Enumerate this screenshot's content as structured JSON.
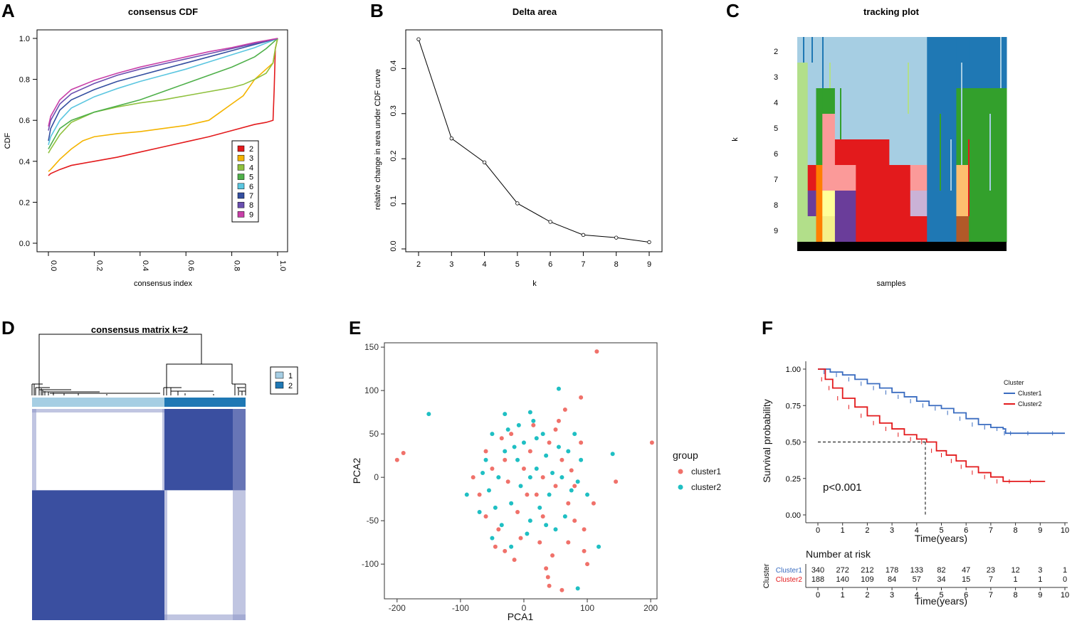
{
  "panel_letters": [
    "A",
    "B",
    "C",
    "D",
    "E",
    "F"
  ],
  "colors": {
    "k2": "#e31a1c",
    "k3": "#f4b400",
    "k4": "#8fc13e",
    "k5": "#4fb04a",
    "k6": "#5bc6e0",
    "k7": "#344fa0",
    "k8": "#6a4fb0",
    "k9": "#c83fa8",
    "cluster1_light": "#a6cee3",
    "cluster2_dark": "#1f78b4",
    "pca_cluster1": "#f0716a",
    "pca_cluster2": "#1fbfc3",
    "km_cluster1": "#3a6cc0",
    "km_cluster2": "#e31a1c",
    "heat_blue": "#3a4fa0"
  },
  "chart_data": [
    {
      "id": "A",
      "type": "line",
      "title": "consensus CDF",
      "xlabel": "consensus index",
      "ylabel": "CDF",
      "xlim": [
        0,
        1
      ],
      "ylim": [
        0,
        1
      ],
      "xticks": [
        "0.0",
        "0.2",
        "0.4",
        "0.6",
        "0.8",
        "1.0"
      ],
      "yticks": [
        "0.0",
        "0.2",
        "0.4",
        "0.6",
        "0.8",
        "1.0"
      ],
      "legend": [
        "2",
        "3",
        "4",
        "5",
        "6",
        "7",
        "8",
        "9"
      ],
      "series": [
        {
          "name": "2",
          "x": [
            0,
            0.01,
            0.05,
            0.1,
            0.2,
            0.3,
            0.4,
            0.5,
            0.6,
            0.7,
            0.8,
            0.9,
            0.95,
            0.98,
            0.985,
            0.99,
            1.0
          ],
          "y": [
            0.33,
            0.34,
            0.36,
            0.38,
            0.4,
            0.42,
            0.445,
            0.47,
            0.495,
            0.52,
            0.55,
            0.58,
            0.59,
            0.6,
            0.75,
            0.95,
            1.0
          ]
        },
        {
          "name": "3",
          "x": [
            0,
            0.01,
            0.05,
            0.1,
            0.15,
            0.2,
            0.3,
            0.4,
            0.5,
            0.6,
            0.7,
            0.75,
            0.8,
            0.85,
            0.9,
            0.95,
            0.98,
            0.99,
            1.0
          ],
          "y": [
            0.35,
            0.36,
            0.41,
            0.46,
            0.5,
            0.52,
            0.535,
            0.545,
            0.56,
            0.575,
            0.6,
            0.64,
            0.68,
            0.72,
            0.8,
            0.85,
            0.88,
            0.95,
            1.0
          ]
        },
        {
          "name": "4",
          "x": [
            0,
            0.01,
            0.05,
            0.1,
            0.2,
            0.3,
            0.4,
            0.5,
            0.6,
            0.7,
            0.8,
            0.85,
            0.9,
            0.95,
            0.98,
            0.99,
            1.0
          ],
          "y": [
            0.44,
            0.46,
            0.53,
            0.59,
            0.64,
            0.665,
            0.685,
            0.7,
            0.72,
            0.74,
            0.76,
            0.775,
            0.8,
            0.83,
            0.88,
            0.95,
            1.0
          ]
        },
        {
          "name": "5",
          "x": [
            0,
            0.01,
            0.05,
            0.1,
            0.2,
            0.3,
            0.4,
            0.5,
            0.6,
            0.7,
            0.8,
            0.9,
            0.95,
            1.0
          ],
          "y": [
            0.46,
            0.48,
            0.56,
            0.6,
            0.64,
            0.67,
            0.7,
            0.74,
            0.78,
            0.82,
            0.86,
            0.91,
            0.95,
            1.0
          ]
        },
        {
          "name": "6",
          "x": [
            0,
            0.01,
            0.05,
            0.1,
            0.2,
            0.3,
            0.4,
            0.5,
            0.6,
            0.7,
            0.8,
            0.9,
            1.0
          ],
          "y": [
            0.48,
            0.52,
            0.6,
            0.66,
            0.715,
            0.755,
            0.79,
            0.82,
            0.85,
            0.885,
            0.92,
            0.955,
            1.0
          ]
        },
        {
          "name": "7",
          "x": [
            0,
            0.01,
            0.05,
            0.1,
            0.2,
            0.3,
            0.4,
            0.5,
            0.6,
            0.7,
            0.8,
            0.9,
            1.0
          ],
          "y": [
            0.5,
            0.56,
            0.65,
            0.7,
            0.75,
            0.79,
            0.82,
            0.85,
            0.88,
            0.91,
            0.94,
            0.97,
            1.0
          ]
        },
        {
          "name": "8",
          "x": [
            0,
            0.01,
            0.05,
            0.1,
            0.2,
            0.3,
            0.4,
            0.5,
            0.6,
            0.7,
            0.8,
            0.9,
            1.0
          ],
          "y": [
            0.55,
            0.6,
            0.68,
            0.73,
            0.78,
            0.82,
            0.85,
            0.875,
            0.9,
            0.925,
            0.95,
            0.975,
            1.0
          ]
        },
        {
          "name": "9",
          "x": [
            0,
            0.01,
            0.05,
            0.1,
            0.2,
            0.3,
            0.4,
            0.5,
            0.6,
            0.7,
            0.8,
            0.9,
            1.0
          ],
          "y": [
            0.57,
            0.62,
            0.7,
            0.75,
            0.795,
            0.83,
            0.86,
            0.885,
            0.91,
            0.935,
            0.955,
            0.98,
            1.0
          ]
        }
      ]
    },
    {
      "id": "B",
      "type": "line",
      "title": "Delta area",
      "xlabel": "k",
      "ylabel": "relative change in area under CDF curve",
      "xlim": [
        2,
        9
      ],
      "ylim": [
        0,
        0.47
      ],
      "xticks": [
        "2",
        "3",
        "4",
        "5",
        "6",
        "7",
        "8",
        "9"
      ],
      "yticks": [
        "0.0",
        "0.1",
        "0.2",
        "0.3",
        "0.4"
      ],
      "x": [
        2,
        3,
        4,
        5,
        6,
        7,
        8,
        9
      ],
      "y": [
        0.465,
        0.245,
        0.192,
        0.101,
        0.06,
        0.031,
        0.025,
        0.015
      ]
    },
    {
      "id": "C",
      "type": "heatmap",
      "title": "tracking plot",
      "xlabel": "samples",
      "ylabel": "k",
      "rows": [
        "2",
        "3",
        "4",
        "5",
        "6",
        "7",
        "8",
        "9"
      ],
      "sample_columns_percent": [
        5,
        4,
        3,
        6,
        10,
        16,
        10,
        8,
        14,
        6,
        18
      ],
      "rows_colors": [
        [
          "#a6cee3",
          "#a6cee3",
          "#a6cee3",
          "#a6cee3",
          "#a6cee3",
          "#a6cee3",
          "#a6cee3",
          "#a6cee3",
          "#1f78b4",
          "#1f78b4",
          "#1f78b4"
        ],
        [
          "#b2df8a",
          "#a6cee3",
          "#a6cee3",
          "#a6cee3",
          "#a6cee3",
          "#a6cee3",
          "#a6cee3",
          "#a6cee3",
          "#1f78b4",
          "#1f78b4",
          "#1f78b4"
        ],
        [
          "#b2df8a",
          "#a6cee3",
          "#33a02c",
          "#33a02c",
          "#a6cee3",
          "#a6cee3",
          "#a6cee3",
          "#a6cee3",
          "#1f78b4",
          "#33a02c",
          "#33a02c"
        ],
        [
          "#b2df8a",
          "#a6cee3",
          "#33a02c",
          "#fb9a99",
          "#a6cee3",
          "#a6cee3",
          "#a6cee3",
          "#a6cee3",
          "#1f78b4",
          "#33a02c",
          "#33a02c"
        ],
        [
          "#b2df8a",
          "#a6cee3",
          "#33a02c",
          "#fb9a99",
          "#e31a1c",
          "#e31a1c",
          "#a6cee3",
          "#a6cee3",
          "#1f78b4",
          "#33a02c",
          "#33a02c"
        ],
        [
          "#b2df8a",
          "#e31a1c",
          "#ff7f00",
          "#fb9a99",
          "#fb9a99",
          "#e31a1c",
          "#e31a1c",
          "#fb9a99",
          "#1f78b4",
          "#fdbf6f",
          "#33a02c"
        ],
        [
          "#b2df8a",
          "#6a3d9a",
          "#ff7f00",
          "#ffff99",
          "#6a3d9a",
          "#e31a1c",
          "#e31a1c",
          "#cab2d6",
          "#1f78b4",
          "#fdbf6f",
          "#33a02c"
        ],
        [
          "#b2df8a",
          "#b2df8a",
          "#ff7f00",
          "#f5f08a",
          "#6a3d9a",
          "#e31a1c",
          "#e31a1c",
          "#e31a1c",
          "#1f78b4",
          "#b15928",
          "#33a02c"
        ]
      ]
    },
    {
      "id": "D",
      "type": "heatmap",
      "title": "consensus matrix k=2",
      "legend": [
        "1",
        "2"
      ],
      "cluster_fraction": [
        0.62,
        0.38
      ]
    },
    {
      "id": "E",
      "type": "scatter",
      "xlabel": "PCA1",
      "ylabel": "PCA2",
      "xlim": [
        -220,
        210
      ],
      "ylim": [
        -140,
        155
      ],
      "xticks": [
        "-200",
        "-100",
        "0",
        "100",
        "200"
      ],
      "yticks": [
        "-100",
        "-50",
        "0",
        "50",
        "100",
        "150"
      ],
      "legend_title": "group",
      "legend": [
        "cluster1",
        "cluster2"
      ],
      "series": [
        {
          "name": "cluster1",
          "points": [
            [
              115,
              145
            ],
            [
              -200,
              20
            ],
            [
              -190,
              28
            ],
            [
              202,
              40
            ],
            [
              90,
              92
            ],
            [
              145,
              -5
            ],
            [
              65,
              78
            ],
            [
              55,
              65
            ],
            [
              35,
              -105
            ],
            [
              38,
              -115
            ],
            [
              40,
              -125
            ],
            [
              60,
              -130
            ],
            [
              100,
              -100
            ],
            [
              -70,
              -20
            ],
            [
              -40,
              -60
            ],
            [
              -30,
              -85
            ],
            [
              70,
              -30
            ],
            [
              80,
              -50
            ],
            [
              95,
              -60
            ],
            [
              90,
              40
            ],
            [
              -20,
              50
            ],
            [
              0,
              10
            ],
            [
              20,
              -20
            ],
            [
              -10,
              -40
            ],
            [
              10,
              30
            ],
            [
              30,
              0
            ],
            [
              -50,
              10
            ],
            [
              -60,
              30
            ],
            [
              40,
              40
            ],
            [
              60,
              20
            ],
            [
              50,
              -10
            ],
            [
              -30,
              20
            ],
            [
              -5,
              -70
            ],
            [
              25,
              -75
            ],
            [
              70,
              -75
            ],
            [
              95,
              -85
            ],
            [
              -45,
              -80
            ],
            [
              -80,
              0
            ],
            [
              75,
              8
            ],
            [
              50,
              55
            ],
            [
              -35,
              45
            ],
            [
              5,
              -20
            ],
            [
              -25,
              -5
            ],
            [
              15,
              60
            ],
            [
              80,
              -10
            ],
            [
              -60,
              -45
            ],
            [
              30,
              -45
            ],
            [
              45,
              -90
            ],
            [
              -15,
              -95
            ],
            [
              110,
              -30
            ]
          ]
        },
        {
          "name": "cluster2",
          "points": [
            [
              -150,
              73
            ],
            [
              -30,
              73
            ],
            [
              10,
              75
            ],
            [
              55,
              102
            ],
            [
              140,
              27
            ],
            [
              118,
              -80
            ],
            [
              85,
              -128
            ],
            [
              -90,
              -20
            ],
            [
              -70,
              -40
            ],
            [
              -50,
              -70
            ],
            [
              -20,
              -80
            ],
            [
              -30,
              30
            ],
            [
              0,
              40
            ],
            [
              20,
              10
            ],
            [
              40,
              -20
            ],
            [
              60,
              0
            ],
            [
              -40,
              0
            ],
            [
              -10,
              20
            ],
            [
              30,
              50
            ],
            [
              70,
              30
            ],
            [
              80,
              50
            ],
            [
              -60,
              20
            ],
            [
              -20,
              -30
            ],
            [
              10,
              -50
            ],
            [
              50,
              -60
            ],
            [
              90,
              20
            ],
            [
              100,
              -20
            ],
            [
              -50,
              50
            ],
            [
              15,
              65
            ],
            [
              35,
              25
            ],
            [
              -5,
              -10
            ],
            [
              25,
              -35
            ],
            [
              65,
              -45
            ],
            [
              -45,
              -35
            ],
            [
              -25,
              55
            ],
            [
              5,
              -65
            ],
            [
              45,
              5
            ],
            [
              75,
              -15
            ],
            [
              -65,
              5
            ],
            [
              10,
              0
            ],
            [
              -15,
              35
            ],
            [
              55,
              35
            ],
            [
              -35,
              -55
            ],
            [
              35,
              -55
            ],
            [
              85,
              -5
            ],
            [
              -55,
              -15
            ],
            [
              20,
              45
            ],
            [
              -8,
              60
            ]
          ]
        }
      ]
    },
    {
      "id": "F",
      "type": "line",
      "xlabel": "Time(years)",
      "ylabel": "Survival probability",
      "xlim": [
        0,
        10
      ],
      "ylim": [
        0,
        1
      ],
      "xticks": [
        "0",
        "1",
        "2",
        "3",
        "4",
        "5",
        "6",
        "7",
        "8",
        "9",
        "10"
      ],
      "yticks": [
        "0.00",
        "0.25",
        "0.50",
        "0.75",
        "1.00"
      ],
      "legend_title": "Cluster",
      "legend": [
        "Cluster1",
        "Cluster2"
      ],
      "annotation": "p<0.001",
      "median_time": 4.35,
      "series": [
        {
          "name": "Cluster1",
          "x": [
            0,
            0.5,
            1,
            1.5,
            2,
            2.5,
            3,
            3.5,
            4,
            4.5,
            5,
            5.5,
            6,
            6.5,
            7,
            7.5,
            7.6,
            8,
            9,
            10
          ],
          "y": [
            1.0,
            0.98,
            0.96,
            0.93,
            0.9,
            0.87,
            0.84,
            0.81,
            0.78,
            0.75,
            0.73,
            0.7,
            0.66,
            0.62,
            0.6,
            0.59,
            0.56,
            0.56,
            0.56,
            0.56
          ]
        },
        {
          "name": "Cluster2",
          "x": [
            0,
            0.3,
            0.6,
            1,
            1.5,
            2,
            2.5,
            3,
            3.5,
            4,
            4.4,
            4.8,
            5.2,
            5.6,
            6,
            6.5,
            7,
            7.5,
            8,
            9.2
          ],
          "y": [
            1.0,
            0.93,
            0.87,
            0.8,
            0.74,
            0.68,
            0.63,
            0.59,
            0.55,
            0.52,
            0.5,
            0.44,
            0.41,
            0.37,
            0.33,
            0.29,
            0.26,
            0.23,
            0.23,
            0.23
          ]
        }
      ],
      "risk_table": {
        "title": "Number at risk",
        "ylabel": "Cluster",
        "rows": [
          {
            "name": "Cluster1",
            "values": [
              "340",
              "272",
              "212",
              "178",
              "133",
              "82",
              "47",
              "23",
              "12",
              "3",
              "1"
            ]
          },
          {
            "name": "Cluster2",
            "values": [
              "188",
              "140",
              "109",
              "84",
              "57",
              "34",
              "15",
              "7",
              "1",
              "1",
              "0"
            ]
          }
        ],
        "xticks": [
          "0",
          "1",
          "2",
          "3",
          "4",
          "5",
          "6",
          "7",
          "8",
          "9",
          "10"
        ],
        "xlabel": "Time(years)"
      }
    }
  ]
}
